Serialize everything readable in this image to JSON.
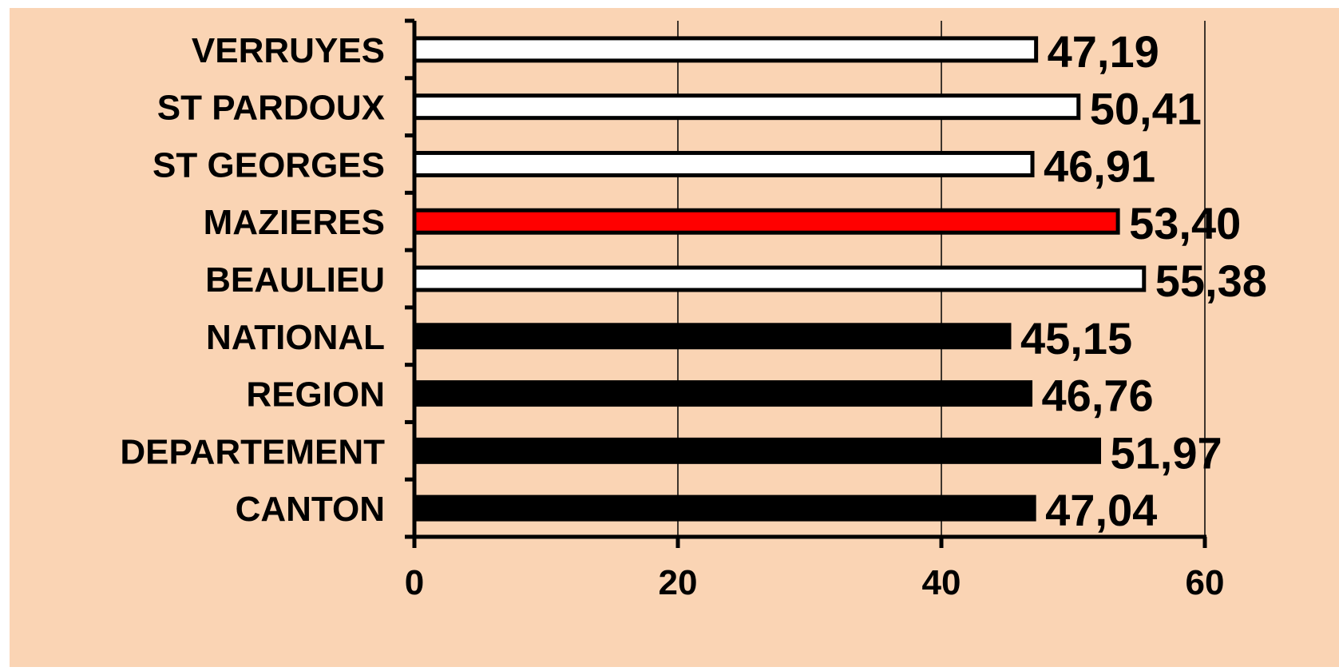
{
  "chart_data": {
    "type": "bar",
    "orientation": "horizontal",
    "categories": [
      "VERRUYES",
      "ST PARDOUX",
      "ST GEORGES",
      "MAZIERES",
      "BEAULIEU",
      "NATIONAL",
      "REGION",
      "DEPARTEMENT",
      "CANTON"
    ],
    "values": [
      47.19,
      50.41,
      46.91,
      53.4,
      55.38,
      45.15,
      46.76,
      51.97,
      47.04
    ],
    "value_labels": [
      "47,19",
      "50,41",
      "46,91",
      "53,40",
      "55,38",
      "45,15",
      "46,76",
      "51,97",
      "47,04"
    ],
    "bar_colors": [
      "#ffffff",
      "#ffffff",
      "#ffffff",
      "#ff0000",
      "#ffffff",
      "#000000",
      "#000000",
      "#000000",
      "#000000"
    ],
    "xlim": [
      0,
      60
    ],
    "xticks": [
      0,
      20,
      40,
      60
    ],
    "xtick_labels": [
      "0",
      "20",
      "40",
      "60"
    ],
    "grid": "vertical",
    "legend": "none",
    "title": "",
    "xlabel": "",
    "ylabel": "",
    "background_color": "#fad4b4",
    "bar_edge_color": "#000000",
    "grid_color": "#000000"
  }
}
